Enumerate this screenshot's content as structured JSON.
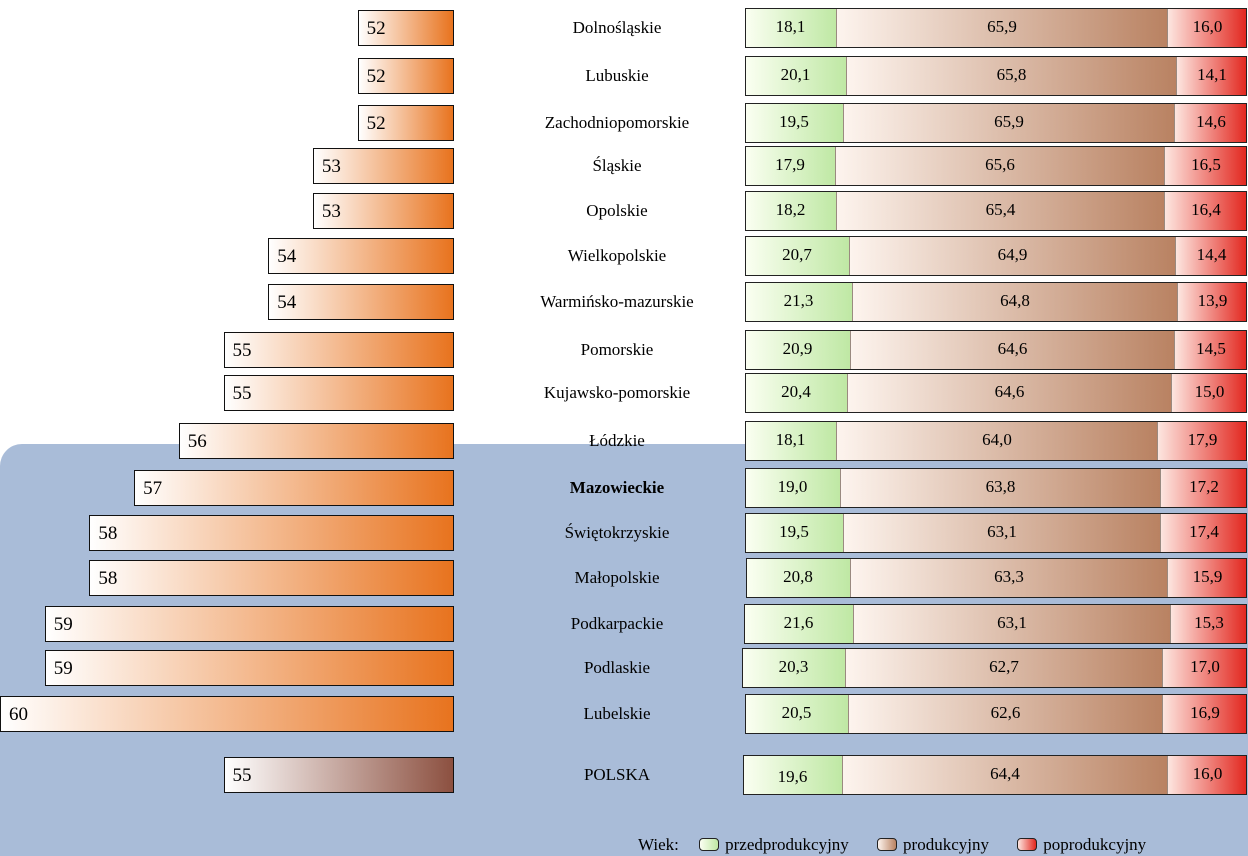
{
  "chart_data": {
    "type": "bar",
    "categories": [
      "Dolnośląskie",
      "Lubuskie",
      "Zachodniopomorskie",
      "Śląskie",
      "Opolskie",
      "Wielkopolskie",
      "Warmińsko-mazurskie",
      "Pomorskie",
      "Kujawsko-pomorskie",
      "Łódzkie",
      "Mazowieckie",
      "Świętokrzyskie",
      "Małopolskie",
      "Podkarpackie",
      "Podlaskie",
      "Lubelskie",
      "POLSKA"
    ],
    "highlight_category": "Mazowieckie",
    "left_values": [
      "52",
      "52",
      "52",
      "53",
      "53",
      "54",
      "54",
      "55",
      "55",
      "56",
      "57",
      "58",
      "58",
      "59",
      "59",
      "60",
      "55"
    ],
    "stacked": {
      "series": [
        {
          "name": "przedprodukcyjny",
          "color": "#8fd06c",
          "values": [
            "18,1",
            "20,1",
            "19,5",
            "17,9",
            "18,2",
            "20,7",
            "21,3",
            "20,9",
            "20,4",
            "18,1",
            "19,0",
            "19,5",
            "20,8",
            "21,6",
            "20,3",
            "20,5",
            "19,6"
          ]
        },
        {
          "name": "produkcyjny",
          "color": "#b98262",
          "values": [
            "65,9",
            "65,8",
            "65,9",
            "65,6",
            "65,4",
            "64,9",
            "64,8",
            "64,6",
            "64,6",
            "64,0",
            "63,8",
            "63,1",
            "63,3",
            "63,1",
            "62,7",
            "62,6",
            "64,4"
          ]
        },
        {
          "name": "poprodukcyjny",
          "color": "#e2261e",
          "values": [
            "16,0",
            "14,1",
            "14,6",
            "16,5",
            "16,4",
            "14,4",
            "13,9",
            "14,5",
            "15,0",
            "17,9",
            "17,2",
            "17,4",
            "15,9",
            "15,3",
            "17,0",
            "16,9",
            "16,0"
          ]
        }
      ]
    },
    "legend": {
      "title": "Wiek:",
      "placement": "bottom-right"
    },
    "colors": {
      "left_bar_end": "#e8731e",
      "left_bar_total_end": "#8c5040",
      "background_panel": "#a9bcd8"
    }
  }
}
